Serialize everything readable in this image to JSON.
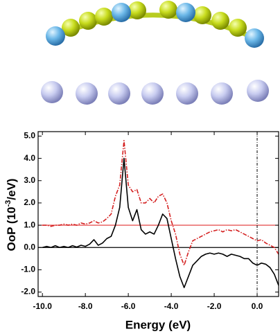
{
  "chart_data": {
    "type": "line",
    "xlabel": "Energy (eV)",
    "ylabel_parts": [
      "OoP (10",
      "-3",
      "/eV)"
    ],
    "x": [
      -10,
      -9.8,
      -9.6,
      -9.4,
      -9.2,
      -9,
      -8.8,
      -8.6,
      -8.4,
      -8.2,
      -8,
      -7.8,
      -7.6,
      -7.4,
      -7.2,
      -7,
      -6.8,
      -6.6,
      -6.4,
      -6.2,
      -6,
      -5.8,
      -5.6,
      -5.4,
      -5.2,
      -5,
      -4.8,
      -4.6,
      -4.4,
      -4.2,
      -4,
      -3.8,
      -3.6,
      -3.4,
      -3.2,
      -3,
      -2.8,
      -2.6,
      -2.4,
      -2.2,
      -2,
      -1.8,
      -1.6,
      -1.4,
      -1.2,
      -1,
      -0.8,
      -0.6,
      -0.4,
      -0.2,
      0,
      0.2,
      0.4,
      0.6,
      0.8,
      1
    ],
    "series": [
      {
        "color": "#000000",
        "dash": "solid",
        "values": [
          0,
          0.05,
          0,
          0.08,
          0,
          0.05,
          0,
          0.08,
          0.02,
          0.1,
          0.05,
          0.15,
          0.35,
          0.1,
          0.2,
          0.4,
          0.5,
          1.0,
          1.8,
          4.0,
          1.8,
          1.2,
          1.7,
          0.8,
          0.6,
          0.7,
          0.6,
          1.0,
          1.5,
          1.3,
          0.4,
          -0.5,
          -1.3,
          -1.8,
          -1.3,
          -0.8,
          -0.6,
          -0.4,
          -0.3,
          -0.25,
          -0.3,
          -0.25,
          -0.3,
          -0.4,
          -0.3,
          -0.35,
          -0.4,
          -0.5,
          -0.5,
          -0.7,
          -0.8,
          -0.7,
          -0.75,
          -0.9,
          -1.2,
          -1.7
        ]
      },
      {
        "color": "#d42020",
        "dash": "dashdot",
        "values": [
          1.0,
          1.0,
          0.95,
          1.0,
          1.0,
          1.05,
          1.0,
          1.05,
          1.0,
          1.1,
          1.05,
          1.1,
          1.2,
          1.1,
          1.15,
          1.3,
          1.5,
          2.3,
          2.8,
          4.8,
          2.8,
          2.5,
          2.6,
          2.0,
          2.0,
          2.2,
          2.0,
          2.3,
          2.4,
          2.0,
          1.2,
          0.6,
          -0.3,
          -0.8,
          -0.2,
          0.3,
          0.4,
          0.5,
          0.6,
          0.7,
          0.75,
          0.8,
          0.7,
          0.8,
          0.75,
          0.8,
          0.7,
          0.6,
          0.5,
          0.4,
          0.3,
          0.35,
          0.2,
          0.1,
          0.0,
          -0.3
        ]
      }
    ],
    "hlines": [
      {
        "value": 1,
        "color": "#e03030"
      },
      {
        "value": 0,
        "color": "#000000"
      }
    ],
    "vlines": [
      0
    ],
    "xlim": [
      -10.2,
      1
    ],
    "ylim": [
      -2.2,
      5.2
    ],
    "xticks": [
      {
        "value": -10,
        "label": "-10.0"
      },
      {
        "value": -8,
        "label": "-8.0"
      },
      {
        "value": -6,
        "label": "-6.0"
      },
      {
        "value": -4,
        "label": "-4.0"
      },
      {
        "value": -2,
        "label": "-2.0"
      },
      {
        "value": 0,
        "label": "0.0"
      }
    ],
    "yticks": [
      {
        "value": -2,
        "label": "-2.0"
      },
      {
        "value": -1,
        "label": "-1.0"
      },
      {
        "value": 0,
        "label": "0.0"
      },
      {
        "value": 1,
        "label": "1.0"
      },
      {
        "value": 2,
        "label": "2.0"
      },
      {
        "value": 3,
        "label": "3.0"
      },
      {
        "value": 4,
        "label": "4.0"
      },
      {
        "value": 5,
        "label": "5.0"
      }
    ]
  }
}
